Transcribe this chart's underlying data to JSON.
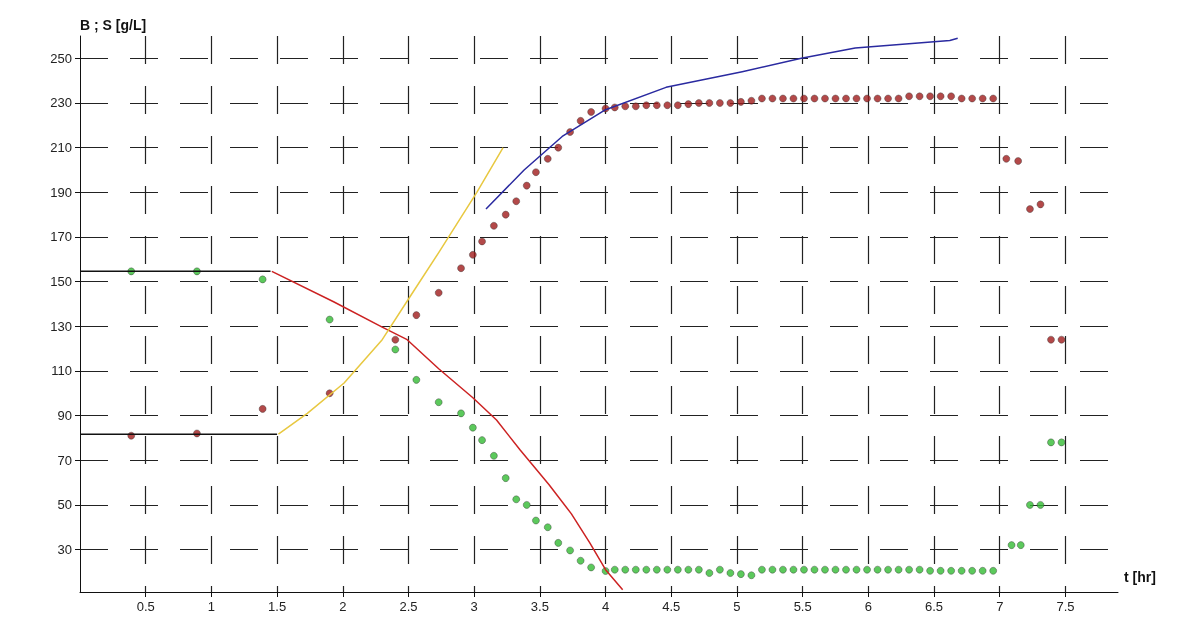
{
  "chart_data": {
    "type": "scatter",
    "xlabel": "t [hr]",
    "ylabel": "B ; S [g/L]",
    "xlim": [
      0,
      7.9
    ],
    "xticks": [
      0.5,
      1,
      1.5,
      2,
      2.5,
      3,
      3.5,
      4,
      4.5,
      5,
      5.5,
      6,
      6.5,
      7,
      7.5
    ],
    "ylim": [
      11,
      260
    ],
    "yticks": [
      30,
      50,
      70,
      90,
      110,
      130,
      150,
      170,
      190,
      210,
      230,
      250
    ],
    "grid": true,
    "marker": "circle",
    "series": [
      {
        "type": "line",
        "marker": "none",
        "color": "#111111",
        "x": [
          0,
          1.45
        ],
        "values": [
          154.6,
          154.6
        ]
      },
      {
        "type": "line",
        "marker": "none",
        "color": "#111111",
        "x": [
          0,
          1.5
        ],
        "values": [
          81.7,
          81.7
        ]
      },
      {
        "type": "line",
        "marker": "none",
        "color": "#cc2222",
        "x": [
          1.46,
          1.93,
          2.3,
          2.49,
          2.73,
          2.99,
          3.17,
          3.35,
          3.57,
          3.74,
          3.88,
          4.0,
          4.13
        ],
        "values": [
          154.6,
          141,
          129.6,
          124,
          111,
          98,
          88,
          74.6,
          59,
          46,
          33,
          21,
          12
        ]
      },
      {
        "type": "line",
        "marker": "none",
        "color": "#e8c840",
        "x": [
          1.51,
          1.73,
          2.01,
          2.3,
          2.52,
          2.73,
          3.02,
          3.22
        ],
        "values": [
          81.7,
          91,
          104.6,
          124,
          144,
          163,
          190,
          210
        ]
      },
      {
        "type": "line",
        "marker": "none",
        "color": "#2a2aa0",
        "x": [
          3.09,
          3.38,
          3.67,
          4.0,
          4.46,
          5.04,
          5.49,
          5.9,
          6.62,
          6.68
        ],
        "values": [
          182.5,
          200,
          215,
          227,
          237,
          244,
          250,
          254.6,
          258,
          259
        ]
      },
      {
        "color": "#a01c1c",
        "x": [
          0.39,
          0.89,
          1.39,
          1.9,
          2.4,
          2.56,
          2.73,
          2.9,
          2.99,
          3.06,
          3.15,
          3.24,
          3.32,
          3.4,
          3.47,
          3.56,
          3.64,
          3.73,
          3.81,
          3.89,
          4.0,
          4.07,
          4.15,
          4.23,
          4.31,
          4.39,
          4.47,
          4.55,
          4.63,
          4.71,
          4.79,
          4.87,
          4.95,
          5.03,
          5.11,
          5.19,
          5.27,
          5.35,
          5.43,
          5.51,
          5.59,
          5.67,
          5.75,
          5.83,
          5.91,
          5.99,
          6.07,
          6.15,
          6.23,
          6.31,
          6.39,
          6.47,
          6.55,
          6.63,
          6.71,
          6.79,
          6.87,
          6.95,
          7.05,
          7.14,
          7.23,
          7.31,
          7.39,
          7.47
        ],
        "values": [
          81,
          82,
          93,
          100,
          124,
          135,
          145,
          156,
          162,
          168,
          175,
          180,
          186,
          193,
          199,
          205,
          210,
          217,
          222,
          226,
          227.5,
          228,
          228.5,
          228.5,
          229,
          229,
          229,
          229,
          229.5,
          230,
          230,
          230,
          230,
          230.5,
          231,
          232,
          232,
          232,
          232,
          232,
          232,
          232,
          232,
          232,
          232,
          232,
          232,
          232,
          232,
          233,
          233,
          233,
          233,
          233,
          232,
          232,
          232,
          232,
          205,
          204,
          182.5,
          184.6,
          124,
          124
        ]
      },
      {
        "color": "#33bb33",
        "x": [
          0.39,
          0.89,
          1.39,
          1.9,
          2.4,
          2.56,
          2.73,
          2.9,
          2.99,
          3.06,
          3.15,
          3.24,
          3.32,
          3.4,
          3.47,
          3.56,
          3.64,
          3.73,
          3.81,
          3.89,
          4.0,
          4.07,
          4.15,
          4.23,
          4.31,
          4.39,
          4.47,
          4.55,
          4.63,
          4.71,
          4.79,
          4.87,
          4.95,
          5.03,
          5.11,
          5.19,
          5.27,
          5.35,
          5.43,
          5.51,
          5.59,
          5.67,
          5.75,
          5.83,
          5.91,
          5.99,
          6.07,
          6.15,
          6.23,
          6.31,
          6.39,
          6.47,
          6.55,
          6.63,
          6.71,
          6.79,
          6.87,
          6.95,
          7.09,
          7.16,
          7.23,
          7.31,
          7.39,
          7.47
        ],
        "values": [
          154.6,
          154.6,
          151,
          133,
          119.6,
          106,
          96,
          91,
          84.6,
          79,
          72,
          62,
          52.5,
          50,
          43,
          40,
          33,
          29.6,
          25,
          22,
          20.4,
          21,
          21,
          21,
          21,
          21,
          21,
          21,
          21,
          21,
          19.5,
          21,
          19.5,
          19,
          18.5,
          21,
          21,
          21,
          21,
          21,
          21,
          21,
          21,
          21,
          21,
          21,
          21,
          21,
          21,
          21,
          21,
          20.5,
          20.5,
          20.5,
          20.5,
          20.5,
          20.5,
          20.5,
          32,
          32,
          50,
          50,
          78,
          78
        ]
      }
    ]
  }
}
